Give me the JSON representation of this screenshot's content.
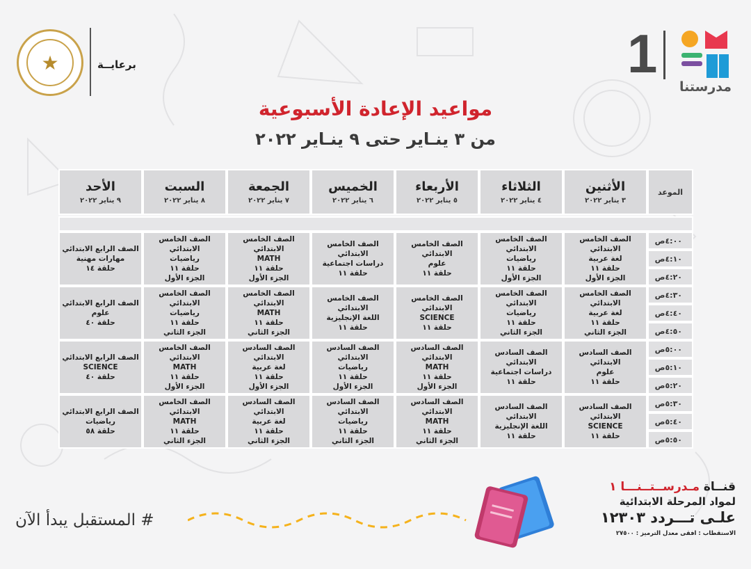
{
  "header": {
    "sponsor_label": "برعايــة",
    "brand_number": "1",
    "brand_name": "مدرستنا"
  },
  "title": "مواعيد الإعادة الأسبوعية",
  "subtitle": "من ٣ ينـاير حتى ٩ ينـاير ٢٠٢٢",
  "schedule": {
    "time_header": "الموعد",
    "days": [
      {
        "name": "الأثنين",
        "date": "٣ يناير ٢٠٢٢"
      },
      {
        "name": "الثلاثاء",
        "date": "٤ يناير ٢٠٢٢"
      },
      {
        "name": "الأربعاء",
        "date": "٥ يناير ٢٠٢٢"
      },
      {
        "name": "الخميس",
        "date": "٦ يناير ٢٠٢٢"
      },
      {
        "name": "الجمعة",
        "date": "٧ يناير ٢٠٢٢"
      },
      {
        "name": "السبت",
        "date": "٨ يناير ٢٠٢٢"
      },
      {
        "name": "الأحد",
        "date": "٩ يناير ٢٠٢٢"
      }
    ],
    "blocks": [
      {
        "times": [
          "٤:٠٠ص",
          "٤:١٠ص",
          "٤:٢٠ص"
        ],
        "cells": [
          [
            "الصف الخامس الابتدائي",
            "لغة عربية",
            "حلقة ١١",
            "الجزء الأول"
          ],
          [
            "الصف الخامس الابتدائي",
            "رياضيات",
            "حلقة ١١",
            "الجزء الأول"
          ],
          [
            "الصف الخامس الابتدائي",
            "علوم",
            "حلقة ١١"
          ],
          [
            "الصف الخامس الابتدائي",
            "دراسات اجتماعية",
            "حلقة ١١"
          ],
          [
            "الصف الخامس الابتدائي",
            "MATH",
            "حلقة ١١",
            "الجزء الأول"
          ],
          [
            "الصف الخامس الابتدائي",
            "رياضيات",
            "حلقة ١١",
            "الجزء الأول"
          ],
          [
            "الصف الرابع الابتدائي",
            "مهارات مهنية",
            "حلقة ١٤"
          ]
        ]
      },
      {
        "times": [
          "٤:٣٠ص",
          "٤:٤٠ص",
          "٤:٥٠ص"
        ],
        "cells": [
          [
            "الصف الخامس الابتدائي",
            "لغة عربية",
            "حلقة ١١",
            "الجزء الثاني"
          ],
          [
            "الصف الخامس الابتدائي",
            "رياضيات",
            "حلقة ١١",
            "الجزء الثاني"
          ],
          [
            "الصف الخامس الابتدائي",
            "SCIENCE",
            "حلقة ١١"
          ],
          [
            "الصف الخامس الابتدائي",
            "اللغة الإنجليزية",
            "حلقة ١١"
          ],
          [
            "الصف الخامس الابتدائي",
            "MATH",
            "حلقة ١١",
            "الجزء الثاني"
          ],
          [
            "الصف الخامس الابتدائي",
            "رياضيات",
            "حلقة ١١",
            "الجزء الثاني"
          ],
          [
            "الصف الرابع الابتدائي",
            "علوم",
            "حلقة ٤٠"
          ]
        ]
      },
      {
        "times": [
          "٥:٠٠ص",
          "٥:١٠ص",
          "٥:٢٠ص"
        ],
        "cells": [
          [
            "الصف السادس الابتدائي",
            "علوم",
            "حلقة ١١"
          ],
          [
            "الصف السادس الابتدائي",
            "دراسات اجتماعية",
            "حلقة ١١"
          ],
          [
            "الصف السادس الابتدائي",
            "MATH",
            "حلقة ١١",
            "الجزء الأول"
          ],
          [
            "الصف السادس الابتدائي",
            "رياضيات",
            "حلقة ١١",
            "الجزء الأول"
          ],
          [
            "الصف السادس الابتدائي",
            "لغة عربية",
            "حلقة ١١",
            "الجزء الأول"
          ],
          [
            "الصف الخامس الابتدائي",
            "MATH",
            "حلقة ١١",
            "الجزء الأول"
          ],
          [
            "الصف الرابع الابتدائي",
            "SCIENCE",
            "حلقة ٤٠"
          ]
        ]
      },
      {
        "times": [
          "٥:٣٠ص",
          "٥:٤٠ص",
          "٥:٥٠ص"
        ],
        "cells": [
          [
            "الصف السادس الابتدائي",
            "SCIENCE",
            "حلقة ١١"
          ],
          [
            "الصف السادس الابتدائي",
            "اللغة الإنجليزية",
            "حلقة ١١"
          ],
          [
            "الصف السادس الابتدائي",
            "MATH",
            "حلقة ١١",
            "الجزء الثاني"
          ],
          [
            "الصف السادس الابتدائي",
            "رياضيات",
            "حلقة ١١",
            "الجزء الثاني"
          ],
          [
            "الصف السادس الابتدائي",
            "لغة عربية",
            "حلقة ١١",
            "الجزء الثاني"
          ],
          [
            "الصف الخامس الابتدائي",
            "MATH",
            "حلقة ١١",
            "الجزء الثاني"
          ],
          [
            "الصف الرابع الابتدائي",
            "رياضيات",
            "حلقة ٥٨"
          ]
        ]
      }
    ]
  },
  "footer": {
    "channel_prefix": "قنــاة ",
    "channel_highlight": "مـدرســتــنـــا ١",
    "channel_sub": "لمواد المرحلة الابتدائية",
    "channel_freq": "علـى تـــردد ١٢٣٠٣",
    "channel_note": "الاستقطاب : افقى معدل الترميز : ٢٧٥٠٠",
    "hashtag": "# المستقبل يبدأ الآن"
  },
  "colors": {
    "accent_red": "#d0242d",
    "cell_gray": "#d9d9db",
    "background": "#f4f4f5",
    "brand_orange": "#f5a623",
    "brand_red": "#e8384f",
    "brand_green": "#3cb371",
    "brand_blue": "#1e9bd7",
    "brand_purple": "#7b4fa0"
  }
}
